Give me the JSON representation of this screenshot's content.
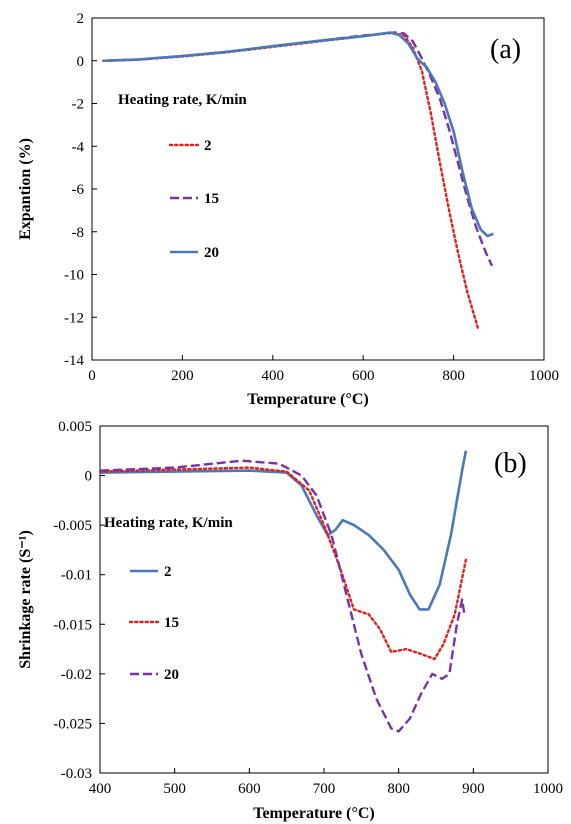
{
  "colors": {
    "red": "#e0211b",
    "purple": "#7b30a6",
    "blue": "#4a78b8"
  },
  "chart_data": [
    {
      "type": "line",
      "panel_label": "(a)",
      "xlabel": "Temperature (°C)",
      "ylabel": "Expantion (%)",
      "xlim": [
        0,
        1000
      ],
      "ylim": [
        -14,
        2
      ],
      "xticks": [
        0,
        200,
        400,
        600,
        800,
        1000
      ],
      "yticks": [
        2,
        0,
        -2,
        -4,
        -6,
        -8,
        -10,
        -12,
        -14
      ],
      "grid": false,
      "legend_title": "Heating rate, K/min",
      "legend_position": "left",
      "series": [
        {
          "name": "2",
          "style": "dotted",
          "color": "red",
          "points": [
            [
              25,
              0
            ],
            [
              100,
              0.05
            ],
            [
              200,
              0.2
            ],
            [
              300,
              0.4
            ],
            [
              400,
              0.65
            ],
            [
              500,
              0.9
            ],
            [
              600,
              1.15
            ],
            [
              660,
              1.3
            ],
            [
              690,
              1.2
            ],
            [
              710,
              0.6
            ],
            [
              730,
              -0.5
            ],
            [
              750,
              -2.5
            ],
            [
              770,
              -4.8
            ],
            [
              790,
              -7
            ],
            [
              810,
              -9
            ],
            [
              830,
              -10.8
            ],
            [
              855,
              -12.6
            ]
          ]
        },
        {
          "name": "15",
          "style": "dashed",
          "color": "purple",
          "points": [
            [
              25,
              0
            ],
            [
              100,
              0.05
            ],
            [
              200,
              0.22
            ],
            [
              300,
              0.42
            ],
            [
              400,
              0.68
            ],
            [
              500,
              0.93
            ],
            [
              600,
              1.18
            ],
            [
              670,
              1.32
            ],
            [
              690,
              1.28
            ],
            [
              710,
              0.9
            ],
            [
              730,
              0.1
            ],
            [
              750,
              -0.8
            ],
            [
              770,
              -1.8
            ],
            [
              790,
              -3.2
            ],
            [
              810,
              -4.8
            ],
            [
              830,
              -6.4
            ],
            [
              850,
              -7.8
            ],
            [
              870,
              -8.9
            ],
            [
              885,
              -9.6
            ]
          ]
        },
        {
          "name": "20",
          "style": "solid",
          "color": "blue",
          "points": [
            [
              25,
              0
            ],
            [
              100,
              0.06
            ],
            [
              200,
              0.22
            ],
            [
              300,
              0.42
            ],
            [
              400,
              0.68
            ],
            [
              500,
              0.93
            ],
            [
              600,
              1.15
            ],
            [
              660,
              1.32
            ],
            [
              680,
              1.2
            ],
            [
              700,
              0.8
            ],
            [
              720,
              0.1
            ],
            [
              740,
              -0.3
            ],
            [
              760,
              -1
            ],
            [
              780,
              -2
            ],
            [
              800,
              -3.3
            ],
            [
              820,
              -5.2
            ],
            [
              840,
              -6.9
            ],
            [
              860,
              -7.9
            ],
            [
              875,
              -8.2
            ],
            [
              888,
              -8.1
            ]
          ]
        }
      ]
    },
    {
      "type": "line",
      "panel_label": "(b)",
      "xlabel": "Temperature (°C)",
      "ylabel": "Shrinkage rate (S⁻¹)",
      "xlim": [
        400,
        1000
      ],
      "ylim": [
        -0.03,
        0.005
      ],
      "xticks": [
        400,
        500,
        600,
        700,
        800,
        900,
        1000
      ],
      "yticks": [
        0.005,
        0,
        -0.005,
        -0.01,
        -0.015,
        -0.02,
        -0.025,
        -0.03
      ],
      "yticklabels": [
        "0.005",
        "0",
        "-0.005",
        "-0.01",
        "-0.015",
        "-0.02",
        "-0.025",
        "-0.03"
      ],
      "grid": false,
      "legend_title": "Heating rate, K/min",
      "legend_position": "left",
      "series": [
        {
          "name": "2",
          "style": "solid",
          "color": "blue",
          "points": [
            [
              400,
              0.0003
            ],
            [
              500,
              0.0004
            ],
            [
              600,
              0.0005
            ],
            [
              650,
              0.0003
            ],
            [
              670,
              -0.001
            ],
            [
              690,
              -0.004
            ],
            [
              705,
              -0.006
            ],
            [
              715,
              -0.0055
            ],
            [
              725,
              -0.0045
            ],
            [
              740,
              -0.005
            ],
            [
              760,
              -0.006
            ],
            [
              780,
              -0.0075
            ],
            [
              800,
              -0.0095
            ],
            [
              815,
              -0.012
            ],
            [
              828,
              -0.0135
            ],
            [
              840,
              -0.0135
            ],
            [
              855,
              -0.011
            ],
            [
              870,
              -0.006
            ],
            [
              885,
              0.0005
            ],
            [
              890,
              0.0025
            ]
          ]
        },
        {
          "name": "15",
          "style": "dotted",
          "color": "red",
          "points": [
            [
              400,
              0.0004
            ],
            [
              500,
              0.0006
            ],
            [
              600,
              0.0008
            ],
            [
              650,
              0.0004
            ],
            [
              680,
              -0.0015
            ],
            [
              700,
              -0.005
            ],
            [
              720,
              -0.009
            ],
            [
              740,
              -0.0135
            ],
            [
              760,
              -0.014
            ],
            [
              775,
              -0.0155
            ],
            [
              790,
              -0.0178
            ],
            [
              810,
              -0.0175
            ],
            [
              830,
              -0.018
            ],
            [
              848,
              -0.0185
            ],
            [
              860,
              -0.017
            ],
            [
              875,
              -0.014
            ],
            [
              890,
              -0.0085
            ]
          ]
        },
        {
          "name": "20",
          "style": "dashed",
          "color": "purple",
          "points": [
            [
              400,
              0.0005
            ],
            [
              500,
              0.0008
            ],
            [
              590,
              0.0015
            ],
            [
              640,
              0.0012
            ],
            [
              670,
              0
            ],
            [
              690,
              -0.002
            ],
            [
              710,
              -0.006
            ],
            [
              730,
              -0.012
            ],
            [
              750,
              -0.018
            ],
            [
              770,
              -0.0225
            ],
            [
              790,
              -0.0255
            ],
            [
              800,
              -0.0258
            ],
            [
              815,
              -0.0245
            ],
            [
              830,
              -0.022
            ],
            [
              845,
              -0.02
            ],
            [
              858,
              -0.0205
            ],
            [
              868,
              -0.02
            ],
            [
              878,
              -0.015
            ],
            [
              885,
              -0.0125
            ],
            [
              888,
              -0.014
            ]
          ]
        }
      ]
    }
  ]
}
